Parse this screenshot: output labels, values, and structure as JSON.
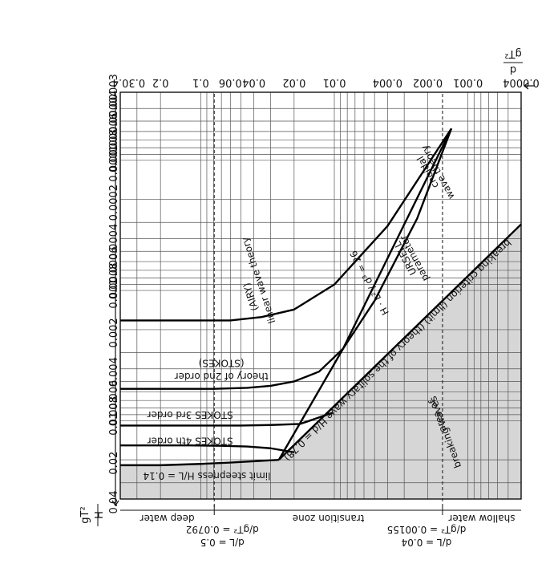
{
  "chart_data": {
    "type": "line",
    "title": "",
    "x_axis": {
      "label_num": "d",
      "label_den": "gT²",
      "scale": "log",
      "range": [
        0.0004,
        0.4
      ],
      "ticks": [
        {
          "v": 0.0004,
          "label": "0.0004"
        },
        {
          "v": 0.001,
          "label": "0.001"
        },
        {
          "v": 0.002,
          "label": "0.002"
        },
        {
          "v": 0.004,
          "label": "0.004"
        },
        {
          "v": 0.01,
          "label": "0.01"
        },
        {
          "v": 0.02,
          "label": "0.02"
        },
        {
          "v": 0.04,
          "label": "0.04"
        },
        {
          "v": 0.06,
          "label": "0.06"
        },
        {
          "v": 0.1,
          "label": "0.1"
        },
        {
          "v": 0.2,
          "label": "0.2"
        },
        {
          "v": 0.3,
          "label": "0.3"
        },
        {
          "v": 0.4,
          "label": "0.4"
        }
      ]
    },
    "y_axis": {
      "label_num": "H",
      "label_den": "gT²",
      "scale": "log",
      "range": [
        3e-05,
        0.04
      ],
      "ticks": [
        {
          "v": 0.04,
          "label": "0.04"
        },
        {
          "v": 0.02,
          "label": "0.02"
        },
        {
          "v": 0.01,
          "label": "0.01"
        },
        {
          "v": 0.008,
          "label": "0.008"
        },
        {
          "v": 0.006,
          "label": "0.006"
        },
        {
          "v": 0.004,
          "label": "0.004"
        },
        {
          "v": 0.002,
          "label": "0.002"
        },
        {
          "v": 0.001,
          "label": "0.001"
        },
        {
          "v": 0.0008,
          "label": "0.0008"
        },
        {
          "v": 0.0006,
          "label": "0.0006"
        },
        {
          "v": 0.0004,
          "label": "0.0004"
        },
        {
          "v": 0.0002,
          "label": "0.0002"
        },
        {
          "v": 0.0001,
          "label": "0.0001"
        },
        {
          "v": 8e-05,
          "label": "0.00008"
        },
        {
          "v": 6e-05,
          "label": "0.00006"
        },
        {
          "v": 4e-05,
          "label": "0.00004"
        },
        {
          "v": 3e-05,
          "label": "0.00003"
        }
      ]
    },
    "series": [
      {
        "name": "breaking criterion (limit) (theory of the solitary wave H/d = 0.78)",
        "points": [
          [
            0.0004,
            0.00031
          ],
          [
            0.026,
            0.02
          ]
        ]
      },
      {
        "name": "limit steepness H/L = 0.14",
        "points": [
          [
            0.026,
            0.02
          ],
          [
            0.04,
            0.0205
          ],
          [
            0.06,
            0.021
          ],
          [
            0.1,
            0.0215
          ],
          [
            0.2,
            0.022
          ],
          [
            0.4,
            0.022
          ]
        ]
      },
      {
        "name": "STOKES 4th order",
        "points": [
          [
            0.02,
            0.0175
          ],
          [
            0.03,
            0.0163
          ],
          [
            0.045,
            0.0158
          ],
          [
            0.07,
            0.0156
          ],
          [
            0.12,
            0.0155
          ],
          [
            0.4,
            0.0155
          ]
        ]
      },
      {
        "name": "STOKES 3rd order",
        "points": [
          [
            0.0103,
            0.0087
          ],
          [
            0.018,
            0.0106
          ],
          [
            0.03,
            0.0108
          ],
          [
            0.05,
            0.0109
          ],
          [
            0.1,
            0.0109
          ],
          [
            0.4,
            0.0109
          ]
        ]
      },
      {
        "name": "theory of 2nd order (STOKES)",
        "points": [
          [
            0.00133,
            5.7e-05
          ],
          [
            0.0024,
            0.00028
          ],
          [
            0.005,
            0.0012
          ],
          [
            0.0086,
            0.0028
          ],
          [
            0.013,
            0.0042
          ],
          [
            0.02,
            0.005
          ],
          [
            0.03,
            0.0054
          ],
          [
            0.045,
            0.0056
          ],
          [
            0.08,
            0.0057
          ],
          [
            0.4,
            0.0057
          ]
        ]
      },
      {
        "name": "URSELL parameter: H·L² / d³ = 26",
        "points": [
          [
            0.00133,
            5.7e-05
          ],
          [
            0.0086,
            0.0028
          ],
          [
            0.026,
            0.02
          ]
        ]
      },
      {
        "name": "linear wave theory (AIRY)",
        "points": [
          [
            0.00133,
            5.7e-05
          ],
          [
            0.004,
            0.00032
          ],
          [
            0.01,
            0.0009
          ],
          [
            0.02,
            0.0014
          ],
          [
            0.035,
            0.0016
          ],
          [
            0.06,
            0.0017
          ],
          [
            0.1,
            0.0017
          ],
          [
            0.4,
            0.0017
          ]
        ]
      }
    ],
    "zones": {
      "boundaries": [
        0.00155,
        0.0792
      ],
      "labels": [
        "shallow water",
        "transition zone",
        "deep water"
      ]
    },
    "annotations": {
      "breaking_area": [
        "area of",
        "breaking waves"
      ],
      "breaking_criterion": "breaking criterion (limit) (theory of the solitary wave H/d = 0.78)",
      "limit_steepness": "limit steepness H/L = 0.14",
      "stokes4": "STOKES 4th order",
      "stokes3": "STOKES 3rd order",
      "stokes2_a": "theory of 2nd order",
      "stokes2_b": "(STOKES)",
      "ursell_a": "URSELL",
      "ursell_b": "parameter",
      "ursell_c": "H · L² / d³ = 26",
      "cnoidal_a": "cnoidal",
      "cnoidal_b": "wave theory",
      "airy_a": "linear wave theory",
      "airy_b": "(AIRY)",
      "deep_l": "d/L = 0.5",
      "deep_g": "d/gT² = 0.0792",
      "shallow_l": "d/L = 0.04",
      "shallow_g": "d/gT² = 0.00155"
    },
    "grid": true
  }
}
